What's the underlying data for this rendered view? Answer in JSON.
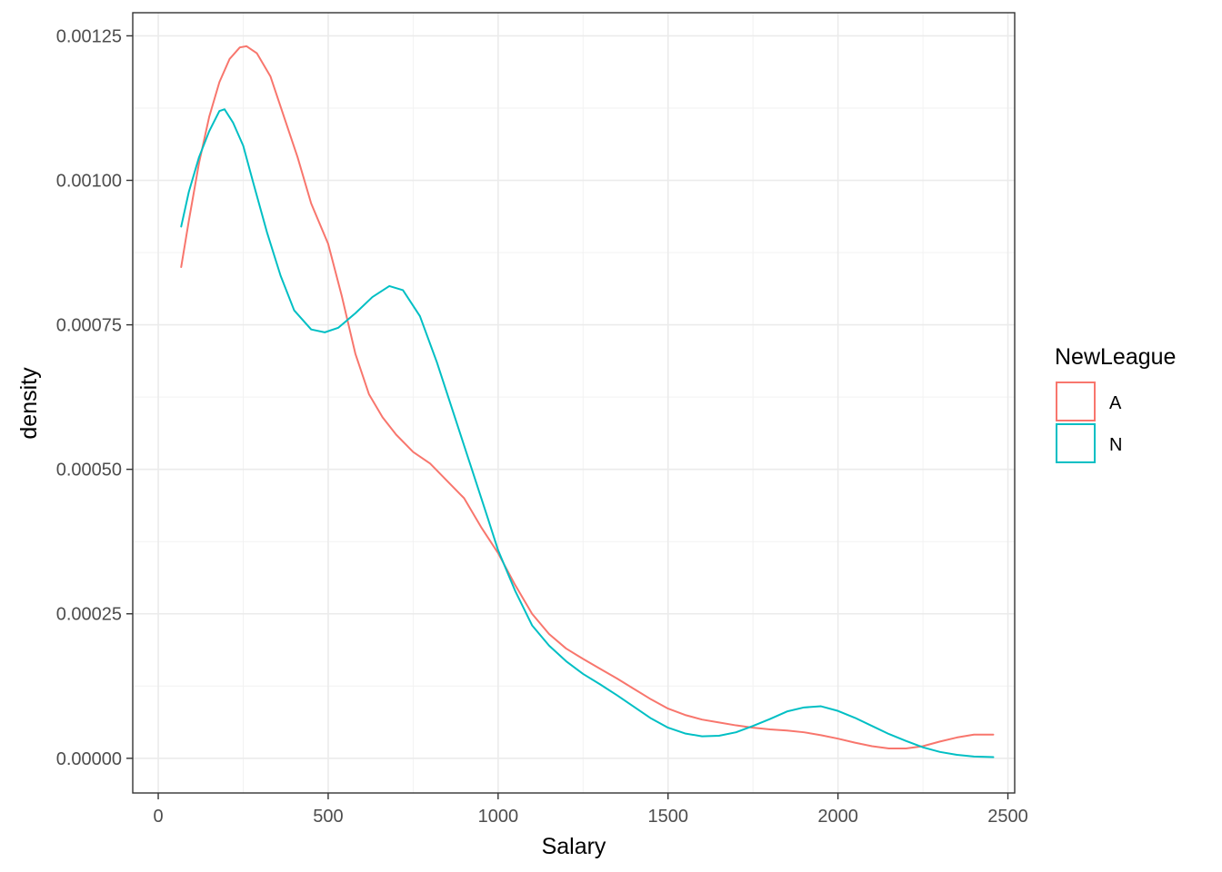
{
  "chart_data": {
    "type": "line",
    "title": "",
    "xlabel": "Salary",
    "ylabel": "density",
    "xlim": [
      -75,
      2520
    ],
    "ylim": [
      -6e-05,
      0.00129
    ],
    "x_ticks": [
      0,
      500,
      1000,
      1500,
      2000,
      2500
    ],
    "x_tick_labels": [
      "0",
      "500",
      "1000",
      "1500",
      "2000",
      "2500"
    ],
    "y_ticks": [
      0,
      0.00025,
      0.0005,
      0.00075,
      0.001,
      0.00125
    ],
    "y_tick_labels": [
      "0.00000",
      "0.00025",
      "0.00050",
      "0.00075",
      "0.00100",
      "0.00125"
    ],
    "grid": true,
    "legend": {
      "title": "NewLeague",
      "position": "right"
    },
    "series": [
      {
        "name": "A",
        "color": "#F8766D",
        "points": [
          [
            67.5,
            0.00085
          ],
          [
            90,
            0.00093
          ],
          [
            120,
            0.00103
          ],
          [
            150,
            0.00111
          ],
          [
            180,
            0.00117
          ],
          [
            210,
            0.00121
          ],
          [
            240,
            0.00123
          ],
          [
            260,
            0.001232
          ],
          [
            290,
            0.00122
          ],
          [
            330,
            0.00118
          ],
          [
            370,
            0.00111
          ],
          [
            410,
            0.00104
          ],
          [
            450,
            0.00096
          ],
          [
            500,
            0.00089
          ],
          [
            540,
            0.0008
          ],
          [
            580,
            0.0007
          ],
          [
            620,
            0.00063
          ],
          [
            660,
            0.00059
          ],
          [
            700,
            0.00056
          ],
          [
            750,
            0.00053
          ],
          [
            800,
            0.00051
          ],
          [
            850,
            0.00048
          ],
          [
            900,
            0.00045
          ],
          [
            950,
            0.0004
          ],
          [
            1000,
            0.000355
          ],
          [
            1050,
            0.0003
          ],
          [
            1100,
            0.00025
          ],
          [
            1150,
            0.000215
          ],
          [
            1200,
            0.00019
          ],
          [
            1250,
            0.000172
          ],
          [
            1300,
            0.000155
          ],
          [
            1350,
            0.000138
          ],
          [
            1400,
            0.00012
          ],
          [
            1450,
            0.000102
          ],
          [
            1500,
            8.6e-05
          ],
          [
            1550,
            7.5e-05
          ],
          [
            1600,
            6.7e-05
          ],
          [
            1650,
            6.2e-05
          ],
          [
            1700,
            5.7e-05
          ],
          [
            1750,
            5.3e-05
          ],
          [
            1800,
            5e-05
          ],
          [
            1850,
            4.8e-05
          ],
          [
            1900,
            4.5e-05
          ],
          [
            1950,
            4e-05
          ],
          [
            2000,
            3.4e-05
          ],
          [
            2050,
            2.7e-05
          ],
          [
            2100,
            2.1e-05
          ],
          [
            2150,
            1.7e-05
          ],
          [
            2200,
            1.7e-05
          ],
          [
            2250,
            2.1e-05
          ],
          [
            2300,
            2.9e-05
          ],
          [
            2350,
            3.6e-05
          ],
          [
            2400,
            4.1e-05
          ],
          [
            2457,
            4.1e-05
          ]
        ]
      },
      {
        "name": "N",
        "color": "#00BFC4",
        "points": [
          [
            67.5,
            0.00092
          ],
          [
            90,
            0.00098
          ],
          [
            120,
            0.00104
          ],
          [
            150,
            0.001085
          ],
          [
            180,
            0.00112
          ],
          [
            195,
            0.001123
          ],
          [
            220,
            0.0011
          ],
          [
            250,
            0.00106
          ],
          [
            280,
            0.000995
          ],
          [
            320,
            0.00091
          ],
          [
            360,
            0.000835
          ],
          [
            400,
            0.000775
          ],
          [
            450,
            0.000742
          ],
          [
            490,
            0.000737
          ],
          [
            530,
            0.000745
          ],
          [
            580,
            0.00077
          ],
          [
            630,
            0.000798
          ],
          [
            680,
            0.000817
          ],
          [
            720,
            0.00081
          ],
          [
            770,
            0.000765
          ],
          [
            820,
            0.000685
          ],
          [
            870,
            0.000595
          ],
          [
            920,
            0.000505
          ],
          [
            970,
            0.000415
          ],
          [
            1000,
            0.00036
          ],
          [
            1050,
            0.00029
          ],
          [
            1100,
            0.00023
          ],
          [
            1150,
            0.000195
          ],
          [
            1200,
            0.000168
          ],
          [
            1250,
            0.000146
          ],
          [
            1300,
            0.000128
          ],
          [
            1350,
            0.000109
          ],
          [
            1400,
            8.9e-05
          ],
          [
            1450,
            6.9e-05
          ],
          [
            1500,
            5.3e-05
          ],
          [
            1550,
            4.3e-05
          ],
          [
            1600,
            3.8e-05
          ],
          [
            1650,
            3.9e-05
          ],
          [
            1700,
            4.5e-05
          ],
          [
            1750,
            5.6e-05
          ],
          [
            1800,
            6.8e-05
          ],
          [
            1850,
            8.1e-05
          ],
          [
            1900,
            8.8e-05
          ],
          [
            1950,
            9e-05
          ],
          [
            2000,
            8.2e-05
          ],
          [
            2050,
            7e-05
          ],
          [
            2100,
            5.6e-05
          ],
          [
            2150,
            4.2e-05
          ],
          [
            2200,
            3e-05
          ],
          [
            2250,
            1.9e-05
          ],
          [
            2300,
            1.1e-05
          ],
          [
            2350,
            6e-06
          ],
          [
            2400,
            3e-06
          ],
          [
            2457,
            2e-06
          ]
        ]
      }
    ]
  }
}
